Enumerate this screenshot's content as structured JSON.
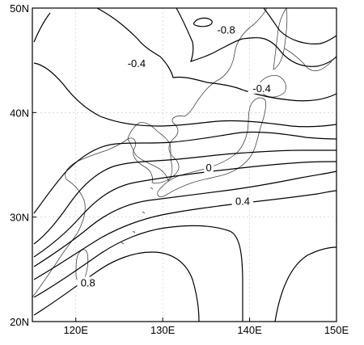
{
  "map": {
    "lon_range": [
      115,
      150
    ],
    "lat_range": [
      20,
      50
    ],
    "lon_ticks": [
      {
        "value": 120,
        "label": "120E"
      },
      {
        "value": 130,
        "label": "130E"
      },
      {
        "value": 140,
        "label": "140E"
      },
      {
        "value": 150,
        "label": "150E"
      }
    ],
    "lat_ticks": [
      {
        "value": 20,
        "label": "20N"
      },
      {
        "value": 30,
        "label": "30N"
      },
      {
        "value": 40,
        "label": "40N"
      },
      {
        "value": 50,
        "label": "50N"
      }
    ],
    "contour_labels": [
      {
        "text": "-0.8",
        "lon": 137.3,
        "lat": 47.8
      },
      {
        "text": "-0.4",
        "lon": 127.0,
        "lat": 44.6
      },
      {
        "text": "-0.4",
        "lon": 141.4,
        "lat": 42.2
      },
      {
        "text": "0",
        "lon": 135.3,
        "lat": 34.6
      },
      {
        "text": "0.4",
        "lon": 139.2,
        "lat": 31.4
      },
      {
        "text": "0.8",
        "lon": 121.4,
        "lat": 23.6
      }
    ],
    "colors": {
      "contour": "#000000",
      "coast": "#444444",
      "grid": "#c8c8c8"
    }
  }
}
